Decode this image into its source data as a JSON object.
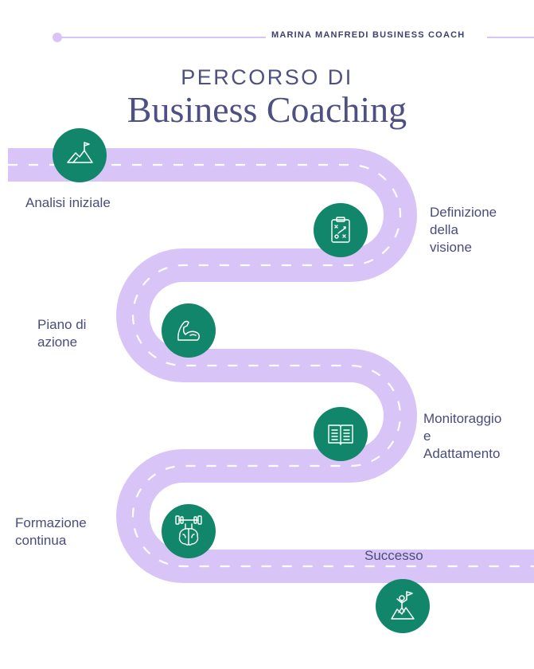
{
  "header": {
    "brand": "MARINA MANFREDI BUSINESS COACH"
  },
  "title": {
    "line1": "PERCORSO DI",
    "line2": "Business Coaching"
  },
  "colors": {
    "road": "#d9c4f7",
    "dash": "#ffffff",
    "icon_bg": "#11866a",
    "text": "#4a4c7c",
    "title": "#4e5083"
  },
  "steps": [
    {
      "label_lines": [
        "Analisi iniziale"
      ],
      "icon": "mountain-flag-icon"
    },
    {
      "label_lines": [
        "Definizione",
        "della",
        "visione"
      ],
      "icon": "strategy-clipboard-icon"
    },
    {
      "label_lines": [
        "Piano di",
        "azione"
      ],
      "icon": "flexed-arm-icon"
    },
    {
      "label_lines": [
        "Monitoraggio",
        "e",
        "Adattamento"
      ],
      "icon": "open-book-icon"
    },
    {
      "label_lines": [
        "Formazione",
        "continua"
      ],
      "icon": "brain-dumbbell-icon"
    },
    {
      "label_lines": [
        "Successo"
      ],
      "icon": "summit-flag-icon"
    }
  ]
}
